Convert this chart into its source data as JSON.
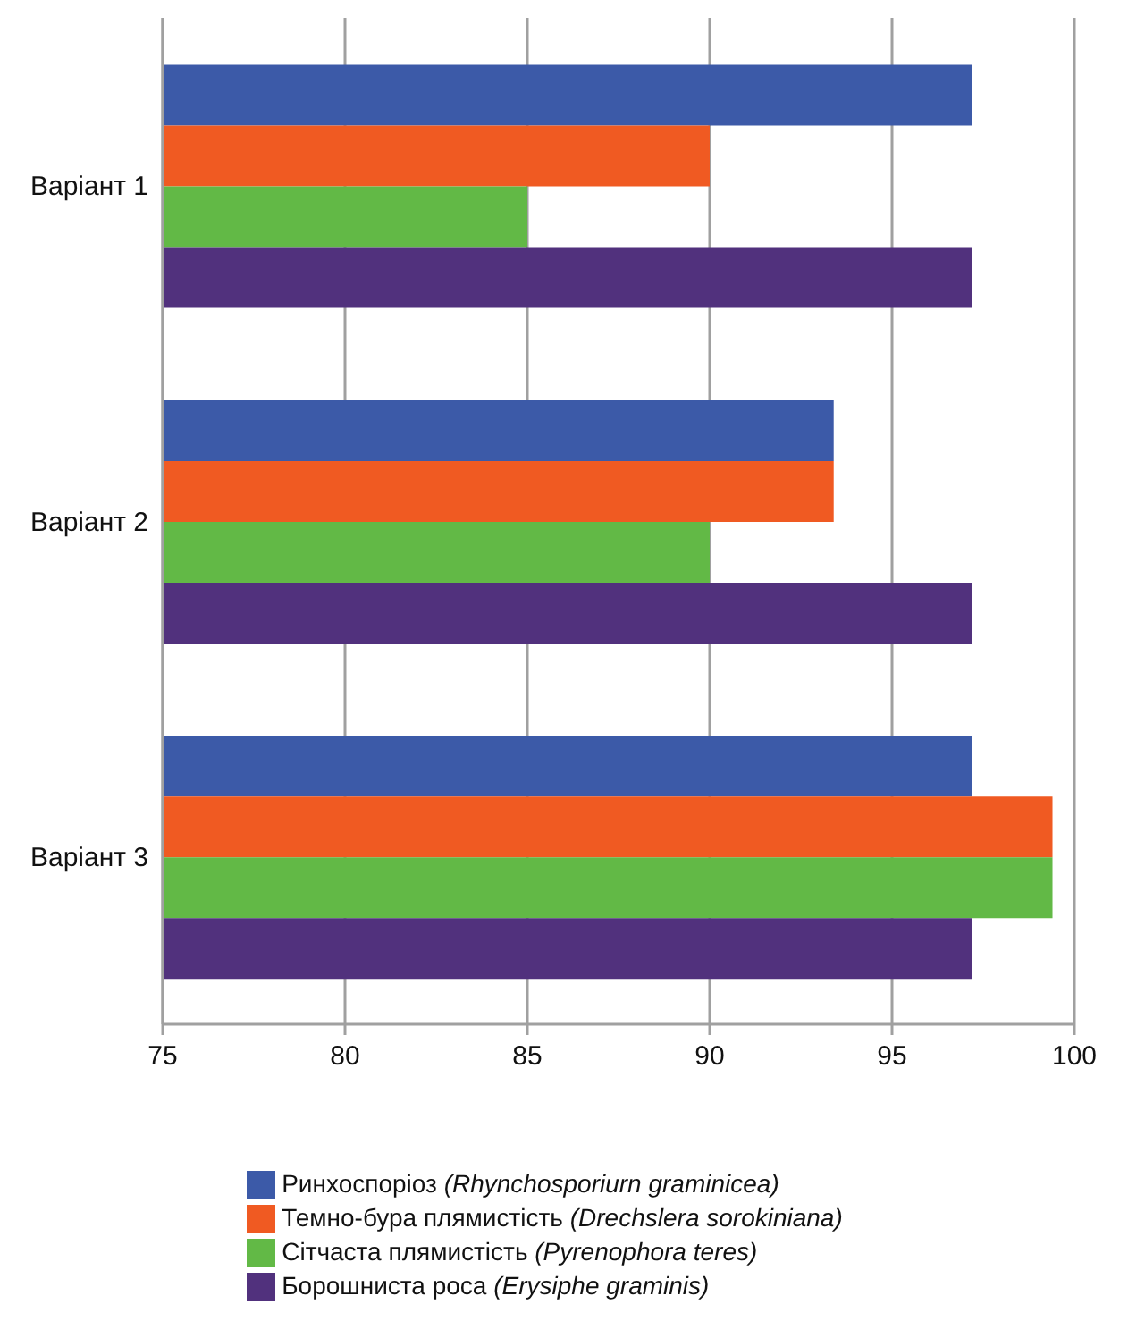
{
  "chart_data": {
    "type": "bar",
    "orientation": "horizontal",
    "categories": [
      "Варіант 1",
      "Варіант 2",
      "Варіант 3"
    ],
    "series": [
      {
        "name": "Ринхоспоріоз (Rhynchosporiurn graminicea)",
        "color": "#3c5aa8",
        "values": [
          97.2,
          93.4,
          97.2
        ]
      },
      {
        "name": "Темно-бура плямистість (Drechslera sorokiniana)",
        "color": "#f05a22",
        "values": [
          90,
          93.4,
          99.4
        ]
      },
      {
        "name": "Сітчаста плямистість (Pyrenophora teres)",
        "color": "#62b946",
        "values": [
          85,
          90,
          99.4
        ]
      },
      {
        "name": "Борошниста роса (Erysiphe graminis)",
        "color": "#51317d",
        "values": [
          97.2,
          97.2,
          97.2
        ]
      }
    ],
    "xlim": [
      75,
      100
    ],
    "xticks": [
      75,
      80,
      85,
      90,
      95,
      100
    ],
    "grid": "x",
    "legend": "bottom"
  }
}
